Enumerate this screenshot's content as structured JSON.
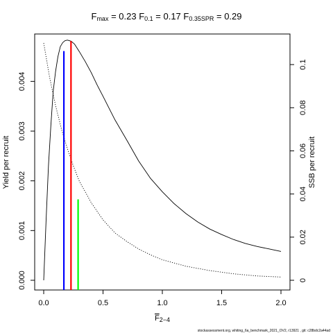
{
  "chart_data": {
    "type": "line",
    "title_parts": [
      {
        "main": "F",
        "sub": "max",
        "value": " = 0.23"
      },
      {
        "main": "F",
        "sub": "0.1",
        "value": " = 0.17"
      },
      {
        "main": "F",
        "sub": "0.35SPR",
        "value": " = 0.29"
      }
    ],
    "xlabel_main": "F",
    "xlabel_sub": "2−4",
    "ylabel_left": "Yield per recruit",
    "ylabel_right": "SSB per recruit",
    "footer": "stockassessment.org,  whiting_6a_benchmark_2021_OV2,  r13921 ,  git: c28bdc2a44ad",
    "xlim": [
      0,
      2.0
    ],
    "ylim_left": [
      0,
      0.0048
    ],
    "ylim_right": [
      0,
      0.11
    ],
    "x_ticks": [
      {
        "value": 0.0,
        "label": "0.0"
      },
      {
        "value": 0.5,
        "label": "0.5"
      },
      {
        "value": 1.0,
        "label": "1.0"
      },
      {
        "value": 1.5,
        "label": "1.5"
      },
      {
        "value": 2.0,
        "label": "2.0"
      }
    ],
    "y_left_ticks": [
      {
        "value": 0.0,
        "label": "0.000"
      },
      {
        "value": 0.001,
        "label": "0.001"
      },
      {
        "value": 0.002,
        "label": "0.002"
      },
      {
        "value": 0.003,
        "label": "0.003"
      },
      {
        "value": 0.004,
        "label": "0.004"
      }
    ],
    "y_right_ticks": [
      {
        "value": 0.0,
        "label": "0"
      },
      {
        "value": 0.02,
        "label": "0.02"
      },
      {
        "value": 0.04,
        "label": "0.04"
      },
      {
        "value": 0.06,
        "label": "0.06"
      },
      {
        "value": 0.08,
        "label": "0.08"
      },
      {
        "value": 0.1,
        "label": "0.1"
      }
    ],
    "series": [
      {
        "axis": "left",
        "line_style": "solid",
        "color": "#000000",
        "x": [
          0,
          0.02,
          0.04,
          0.06,
          0.08,
          0.1,
          0.12,
          0.14,
          0.16,
          0.18,
          0.2,
          0.23,
          0.26,
          0.3,
          0.35,
          0.4,
          0.45,
          0.5,
          0.6,
          0.7,
          0.8,
          0.9,
          1.0,
          1.1,
          1.2,
          1.3,
          1.4,
          1.5,
          1.6,
          1.7,
          1.8,
          1.9,
          2.0
        ],
        "y": [
          0,
          0.0012,
          0.0023,
          0.0031,
          0.0038,
          0.0042,
          0.0045,
          0.0047,
          0.00478,
          0.00482,
          0.00483,
          0.00481,
          0.00475,
          0.0046,
          0.0044,
          0.00418,
          0.00393,
          0.0037,
          0.00323,
          0.00282,
          0.0024,
          0.00205,
          0.00178,
          0.00154,
          0.00134,
          0.00117,
          0.00103,
          0.00092,
          0.00082,
          0.00074,
          0.00068,
          0.00063,
          0.00058
        ]
      },
      {
        "axis": "right",
        "line_style": "dotted",
        "color": "#000000",
        "x": [
          0,
          0.05,
          0.1,
          0.15,
          0.2,
          0.25,
          0.3,
          0.4,
          0.5,
          0.6,
          0.7,
          0.8,
          0.9,
          1.0,
          1.2,
          1.4,
          1.6,
          1.8,
          2.0
        ],
        "y": [
          0.11,
          0.094,
          0.081,
          0.07,
          0.061,
          0.053,
          0.046,
          0.036,
          0.028,
          0.022,
          0.018,
          0.0145,
          0.0118,
          0.0095,
          0.0065,
          0.0045,
          0.003,
          0.002,
          0.0015
        ]
      }
    ],
    "reference_lines": [
      {
        "name": "F0.1",
        "x": 0.17,
        "axis": "left",
        "y_top": 0.00461,
        "color": "#0000ff"
      },
      {
        "name": "Fmax",
        "x": 0.23,
        "axis": "left",
        "y_top": 0.00481,
        "color": "#ff0000"
      },
      {
        "name": "F0.35SPR",
        "x": 0.29,
        "axis": "right",
        "y_top": 0.0375,
        "color": "#00ff00"
      }
    ]
  }
}
